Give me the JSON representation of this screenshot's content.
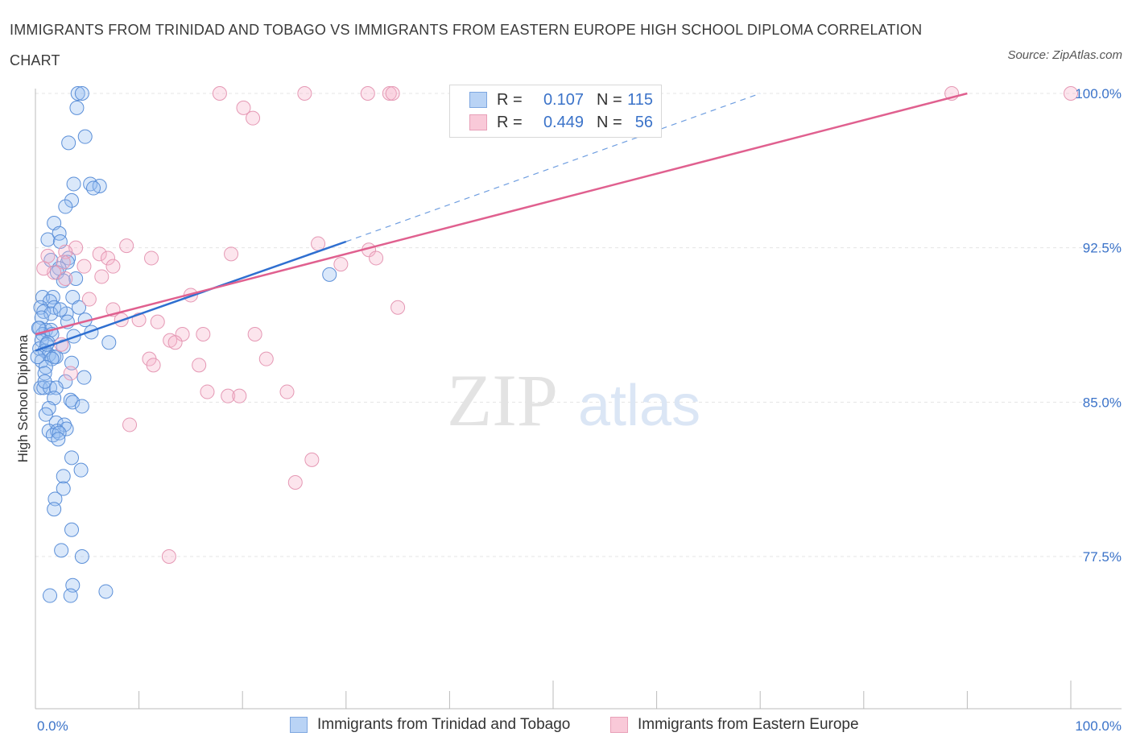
{
  "title": "IMMIGRANTS FROM TRINIDAD AND TOBAGO VS IMMIGRANTS FROM EASTERN EUROPE HIGH SCHOOL DIPLOMA CORRELATION CHART",
  "source": "Source: ZipAtlas.com",
  "watermark": {
    "zip": "ZIP",
    "atlas": "atlas"
  },
  "colors": {
    "blue": "#3b73c9",
    "blue_fill": "#a9c8f0",
    "pink": "#e0608f",
    "pink_fill": "#f5b8cc",
    "grid": "#e2e2e2"
  },
  "legend": {
    "r_label": "R =",
    "n_label": "N =",
    "series": [
      {
        "name": "Immigrants from Trinidad and Tobago",
        "r": "0.107",
        "n": "115"
      },
      {
        "name": "Immigrants from Eastern Europe",
        "r": "0.449",
        "n": "56"
      }
    ]
  },
  "chart_data": {
    "type": "scatter",
    "title": "IMMIGRANTS FROM TRINIDAD AND TOBAGO VS IMMIGRANTS FROM EASTERN EUROPE HIGH SCHOOL DIPLOMA CORRELATION CHART",
    "xlabel": "",
    "ylabel": "High School Diploma",
    "xlim": [
      0,
      100
    ],
    "ylim": [
      70,
      101
    ],
    "x_tick_labels": [
      "0.0%",
      "100.0%"
    ],
    "y_ticks": [
      77.5,
      85.0,
      92.5,
      100.0
    ],
    "y_tick_labels": [
      "77.5%",
      "85.0%",
      "92.5%",
      "100.0%"
    ],
    "series": [
      {
        "name": "Immigrants from Trinidad and Tobago",
        "color": "#3b73c9",
        "points": [
          [
            4.1,
            100.0
          ],
          [
            4.5,
            100.0
          ],
          [
            4.0,
            99.3
          ],
          [
            4.8,
            97.9
          ],
          [
            3.2,
            97.6
          ],
          [
            3.7,
            95.6
          ],
          [
            5.3,
            95.6
          ],
          [
            6.2,
            95.5
          ],
          [
            5.6,
            95.4
          ],
          [
            3.5,
            94.8
          ],
          [
            2.9,
            94.5
          ],
          [
            1.8,
            93.7
          ],
          [
            1.2,
            92.9
          ],
          [
            2.3,
            93.2
          ],
          [
            2.4,
            92.8
          ],
          [
            1.5,
            91.9
          ],
          [
            3.2,
            92.0
          ],
          [
            3.1,
            91.8
          ],
          [
            2.3,
            91.5
          ],
          [
            2.1,
            91.3
          ],
          [
            3.9,
            91.0
          ],
          [
            2.7,
            90.9
          ],
          [
            0.7,
            90.1
          ],
          [
            1.7,
            90.1
          ],
          [
            3.6,
            90.1
          ],
          [
            1.4,
            89.9
          ],
          [
            0.5,
            89.6
          ],
          [
            1.8,
            89.6
          ],
          [
            0.8,
            89.4
          ],
          [
            4.2,
            89.6
          ],
          [
            1.5,
            89.3
          ],
          [
            3.0,
            89.3
          ],
          [
            0.6,
            89.1
          ],
          [
            4.8,
            89.0
          ],
          [
            3.1,
            88.9
          ],
          [
            0.4,
            88.6
          ],
          [
            1.0,
            88.5
          ],
          [
            1.5,
            88.5
          ],
          [
            0.7,
            88.3
          ],
          [
            1.6,
            88.3
          ],
          [
            5.4,
            88.4
          ],
          [
            3.7,
            88.2
          ],
          [
            0.6,
            88.0
          ],
          [
            1.2,
            87.9
          ],
          [
            7.1,
            87.9
          ],
          [
            2.7,
            87.7
          ],
          [
            0.4,
            87.6
          ],
          [
            0.9,
            87.5
          ],
          [
            1.3,
            87.3
          ],
          [
            1.8,
            87.2
          ],
          [
            2.0,
            87.2
          ],
          [
            0.6,
            87.0
          ],
          [
            1.6,
            87.1
          ],
          [
            3.5,
            86.9
          ],
          [
            1.0,
            86.7
          ],
          [
            0.9,
            86.4
          ],
          [
            4.7,
            86.2
          ],
          [
            2.9,
            86.0
          ],
          [
            0.5,
            85.7
          ],
          [
            0.8,
            85.7
          ],
          [
            1.4,
            85.7
          ],
          [
            2.0,
            85.7
          ],
          [
            1.8,
            85.2
          ],
          [
            3.4,
            85.1
          ],
          [
            3.6,
            85.0
          ],
          [
            1.3,
            84.7
          ],
          [
            4.5,
            84.8
          ],
          [
            1.0,
            84.4
          ],
          [
            2.0,
            84.0
          ],
          [
            2.8,
            83.9
          ],
          [
            3.0,
            83.7
          ],
          [
            1.3,
            83.6
          ],
          [
            2.1,
            83.6
          ],
          [
            1.7,
            83.4
          ],
          [
            2.3,
            83.5
          ],
          [
            2.2,
            83.2
          ],
          [
            3.5,
            82.3
          ],
          [
            4.4,
            81.7
          ],
          [
            2.7,
            81.4
          ],
          [
            2.7,
            80.8
          ],
          [
            1.9,
            80.3
          ],
          [
            1.8,
            79.8
          ],
          [
            3.5,
            78.8
          ],
          [
            2.5,
            77.8
          ],
          [
            4.5,
            77.5
          ],
          [
            3.6,
            76.1
          ],
          [
            1.4,
            75.6
          ],
          [
            3.4,
            75.6
          ],
          [
            6.8,
            75.8
          ],
          [
            28.4,
            91.2
          ],
          [
            0.3,
            88.6
          ],
          [
            0.9,
            86.0
          ],
          [
            2.4,
            89.5
          ],
          [
            1.1,
            87.8
          ],
          [
            0.2,
            87.2
          ]
        ]
      },
      {
        "name": "Immigrants from Eastern Europe",
        "color": "#e0608f",
        "points": [
          [
            17.8,
            100.0
          ],
          [
            26.0,
            100.0
          ],
          [
            32.1,
            100.0
          ],
          [
            34.2,
            100.0
          ],
          [
            34.5,
            100.0
          ],
          [
            88.5,
            100.0
          ],
          [
            100.0,
            100.0
          ],
          [
            20.1,
            99.3
          ],
          [
            21.0,
            98.8
          ],
          [
            27.3,
            92.7
          ],
          [
            8.8,
            92.6
          ],
          [
            3.9,
            92.5
          ],
          [
            1.2,
            92.1
          ],
          [
            2.9,
            92.3
          ],
          [
            6.2,
            92.2
          ],
          [
            11.2,
            92.0
          ],
          [
            7.0,
            92.0
          ],
          [
            18.9,
            92.2
          ],
          [
            32.2,
            92.4
          ],
          [
            32.9,
            92.0
          ],
          [
            2.7,
            91.8
          ],
          [
            4.7,
            91.6
          ],
          [
            7.5,
            91.6
          ],
          [
            1.8,
            91.3
          ],
          [
            2.9,
            91.0
          ],
          [
            6.4,
            91.1
          ],
          [
            29.5,
            91.7
          ],
          [
            0.8,
            91.5
          ],
          [
            15.0,
            90.2
          ],
          [
            5.2,
            90.0
          ],
          [
            35.0,
            89.6
          ],
          [
            7.5,
            89.5
          ],
          [
            8.3,
            89.0
          ],
          [
            10.0,
            89.0
          ],
          [
            11.8,
            88.9
          ],
          [
            14.2,
            88.3
          ],
          [
            16.2,
            88.3
          ],
          [
            21.2,
            88.3
          ],
          [
            13.0,
            88.0
          ],
          [
            13.5,
            87.9
          ],
          [
            2.5,
            87.8
          ],
          [
            11.0,
            87.1
          ],
          [
            22.3,
            87.1
          ],
          [
            11.4,
            86.8
          ],
          [
            15.8,
            86.8
          ],
          [
            3.4,
            86.4
          ],
          [
            16.6,
            85.5
          ],
          [
            18.6,
            85.3
          ],
          [
            19.7,
            85.3
          ],
          [
            24.3,
            85.5
          ],
          [
            9.1,
            83.9
          ],
          [
            26.7,
            82.2
          ],
          [
            25.1,
            81.1
          ],
          [
            12.9,
            77.5
          ]
        ]
      }
    ],
    "trendlines": [
      {
        "series": "Immigrants from Trinidad and Tobago",
        "solid": {
          "x": [
            0,
            30
          ],
          "y": [
            87.5,
            92.8
          ]
        },
        "dashed": {
          "x": [
            30,
            70
          ],
          "y": [
            92.8,
            100.0
          ]
        }
      },
      {
        "series": "Immigrants from Eastern Europe",
        "solid": {
          "x": [
            0,
            90
          ],
          "y": [
            88.3,
            100.0
          ]
        }
      }
    ]
  }
}
